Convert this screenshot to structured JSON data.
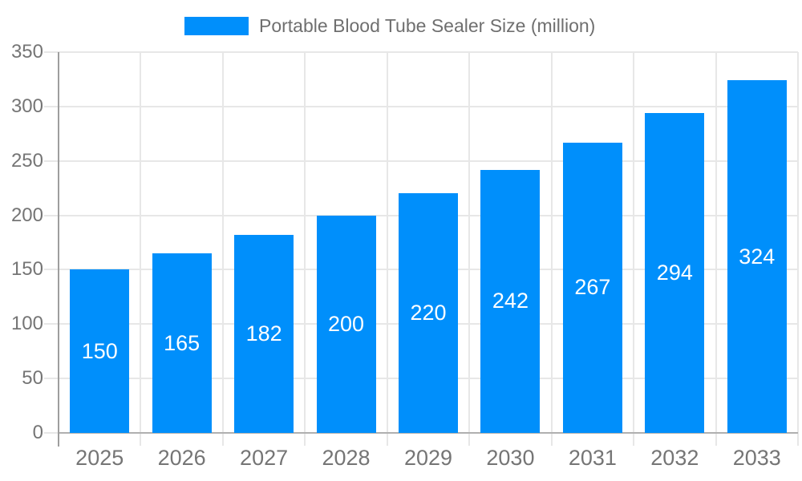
{
  "chart_data": {
    "type": "bar",
    "title": "Portable Blood Tube Sealer Size (million)",
    "categories": [
      "2025",
      "2026",
      "2027",
      "2028",
      "2029",
      "2030",
      "2031",
      "2032",
      "2033"
    ],
    "series": [
      {
        "name": "Portable Blood Tube Sealer Size (million)",
        "values": [
          150,
          165,
          182,
          200,
          220,
          242,
          267,
          294,
          324
        ]
      }
    ],
    "xlabel": "",
    "ylabel": "",
    "ylim": [
      0,
      350
    ],
    "ytick_step": 50,
    "yticks": [
      0,
      50,
      100,
      150,
      200,
      250,
      300,
      350
    ],
    "grid": "both",
    "legend_position": "top",
    "value_labels": "inside-center",
    "colors": {
      "bar": "#008FFB",
      "bar_value_text": "#ffffff",
      "axis_text": "#757575",
      "title_text": "#6f6f6f",
      "grid_line": "#e7e7e7",
      "y_axis_line": "#9e9e9e",
      "x_base_line": "#b0b0b0",
      "background": "#ffffff"
    }
  }
}
